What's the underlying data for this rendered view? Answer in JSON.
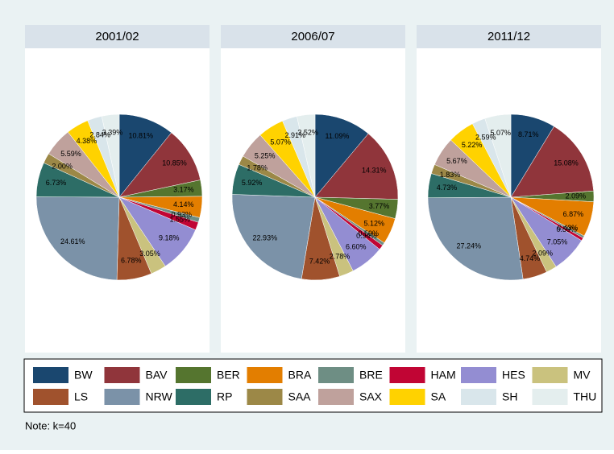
{
  "chart_data": [
    {
      "type": "pie",
      "title": "2001/02",
      "categories": [
        "BW",
        "BAV",
        "BER",
        "BRA",
        "BRE",
        "HAM",
        "HES",
        "MV",
        "LS",
        "NRW",
        "RP",
        "SAA",
        "SAX",
        "SA",
        "SH",
        "THU"
      ],
      "colors": [
        "#1a476f",
        "#90353b",
        "#55752f",
        "#e37e00",
        "#6e8e84",
        "#c10534",
        "#938dd2",
        "#cac27e",
        "#a0522d",
        "#7b92a8",
        "#2d6d66",
        "#9c8847",
        "#bfa19c",
        "#ffd200",
        "#d9e6eb",
        "#e4eeee"
      ],
      "values": [
        10.81,
        10.85,
        3.17,
        4.14,
        0.93,
        1.55,
        9.18,
        3.05,
        6.78,
        24.61,
        6.73,
        2.0,
        5.59,
        4.38,
        2.84,
        3.39
      ],
      "value_labels": [
        "10.81%",
        "10.85%",
        "3.17%",
        "4.14%",
        "0.93%",
        "1.55%",
        "9.18%",
        "3.05%",
        "6.78%",
        "24.61%",
        "6.73%",
        "2.00%",
        "5.59%",
        "4.38%",
        "2.84%",
        "3.39%"
      ]
    },
    {
      "type": "pie",
      "title": "2006/07",
      "categories": [
        "BW",
        "BAV",
        "BER",
        "BRA",
        "BRE",
        "HAM",
        "HES",
        "MV",
        "LS",
        "NRW",
        "RP",
        "SAA",
        "SAX",
        "SA",
        "SH",
        "THU"
      ],
      "colors": [
        "#1a476f",
        "#90353b",
        "#55752f",
        "#e37e00",
        "#6e8e84",
        "#c10534",
        "#938dd2",
        "#cac27e",
        "#a0522d",
        "#7b92a8",
        "#2d6d66",
        "#9c8847",
        "#bfa19c",
        "#ffd200",
        "#d9e6eb",
        "#e4eeee"
      ],
      "values": [
        11.09,
        14.31,
        3.77,
        5.12,
        0.59,
        0.94,
        6.6,
        2.78,
        7.42,
        22.93,
        5.92,
        1.78,
        5.25,
        5.07,
        2.91,
        3.52
      ],
      "value_labels": [
        "11.09%",
        "14.31%",
        "3.77%",
        "5.12%",
        "0.59%",
        "0.94%",
        "6.60%",
        "2.78%",
        "7.42%",
        "22.93%",
        "5.92%",
        "1.78%",
        "5.25%",
        "5.07%",
        "2.91%",
        "3.52%"
      ]
    },
    {
      "type": "pie",
      "title": "2011/12",
      "categories": [
        "BW",
        "BAV",
        "BER",
        "BRA",
        "BRE",
        "HAM",
        "HES",
        "MV",
        "LS",
        "NRW",
        "RP",
        "SAA",
        "SAX",
        "SA",
        "SH",
        "THU"
      ],
      "colors": [
        "#1a476f",
        "#90353b",
        "#55752f",
        "#e37e00",
        "#6e8e84",
        "#c10534",
        "#938dd2",
        "#cac27e",
        "#a0522d",
        "#7b92a8",
        "#2d6d66",
        "#9c8847",
        "#bfa19c",
        "#ffd200",
        "#d9e6eb",
        "#e4eeee"
      ],
      "values": [
        8.71,
        15.08,
        2.09,
        6.87,
        0.43,
        0.59,
        7.05,
        2.09,
        4.74,
        27.24,
        4.73,
        1.83,
        5.67,
        5.22,
        2.59,
        5.07
      ],
      "value_labels": [
        "8.71%",
        "15.08%",
        "2.09%",
        "6.87%",
        "0.43%",
        "0.59%",
        "7.05%",
        "2.09%",
        "4.74%",
        "27.24%",
        "4.73%",
        "1.83%",
        "5.67%",
        "5.22%",
        "2.59%",
        "5.07%"
      ]
    }
  ],
  "note": "Note: k=40"
}
